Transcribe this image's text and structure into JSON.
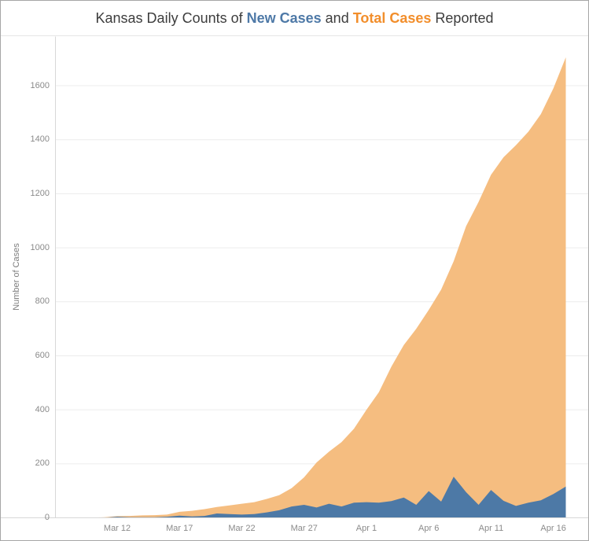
{
  "title": {
    "prefix": "Kansas Daily Counts of ",
    "series_new": "New Cases",
    "connector": " and ",
    "series_total": "Total Cases",
    "suffix": " Reported"
  },
  "colors": {
    "new_cases_fill": "#4d79a6",
    "total_cases_fill": "#f5bd80",
    "title_new": "#4e79a7",
    "title_total": "#f28e2b",
    "gridline": "#ececec",
    "axis_line": "#d8d8d8",
    "tick_label": "#8a8a8a"
  },
  "chart_data": {
    "type": "area",
    "title": "Kansas Daily Counts of New Cases and Total Cases Reported",
    "xlabel": "",
    "ylabel": "Number of Cases",
    "grid": "horizontal",
    "legend_position": "in-title",
    "ylim": [
      0,
      1700
    ],
    "y_ticks": [
      0,
      200,
      400,
      600,
      800,
      1000,
      1200,
      1400,
      1600
    ],
    "x_ticks": [
      "Mar 12",
      "Mar 17",
      "Mar 22",
      "Mar 27",
      "Apr 1",
      "Apr 6",
      "Apr 11",
      "Apr 16"
    ],
    "x": [
      "Mar 9",
      "Mar 10",
      "Mar 11",
      "Mar 12",
      "Mar 13",
      "Mar 14",
      "Mar 15",
      "Mar 16",
      "Mar 17",
      "Mar 18",
      "Mar 19",
      "Mar 20",
      "Mar 21",
      "Mar 22",
      "Mar 23",
      "Mar 24",
      "Mar 25",
      "Mar 26",
      "Mar 27",
      "Mar 28",
      "Mar 29",
      "Mar 30",
      "Mar 31",
      "Apr 1",
      "Apr 2",
      "Apr 3",
      "Apr 4",
      "Apr 5",
      "Apr 6",
      "Apr 7",
      "Apr 8",
      "Apr 9",
      "Apr 10",
      "Apr 11",
      "Apr 12",
      "Apr 13",
      "Apr 14",
      "Apr 15",
      "Apr 16",
      "Apr 17"
    ],
    "series": [
      {
        "name": "Total Cases",
        "color": "#f5bd80",
        "values": [
          1,
          1,
          2,
          6,
          7,
          9,
          10,
          12,
          22,
          26,
          32,
          40,
          46,
          52,
          58,
          70,
          84,
          110,
          150,
          205,
          245,
          280,
          330,
          400,
          465,
          560,
          640,
          700,
          770,
          845,
          950,
          1080,
          1170,
          1270,
          1335,
          1380,
          1430,
          1495,
          1590,
          1705
        ]
      },
      {
        "name": "New Cases",
        "color": "#4d79a6",
        "values": [
          0,
          1,
          1,
          4,
          2,
          2,
          2,
          4,
          8,
          5,
          7,
          16,
          14,
          12,
          14,
          20,
          28,
          42,
          48,
          38,
          52,
          42,
          56,
          58,
          56,
          62,
          75,
          48,
          99,
          60,
          152,
          95,
          48,
          103,
          63,
          44,
          56,
          65,
          88,
          116
        ]
      }
    ]
  }
}
